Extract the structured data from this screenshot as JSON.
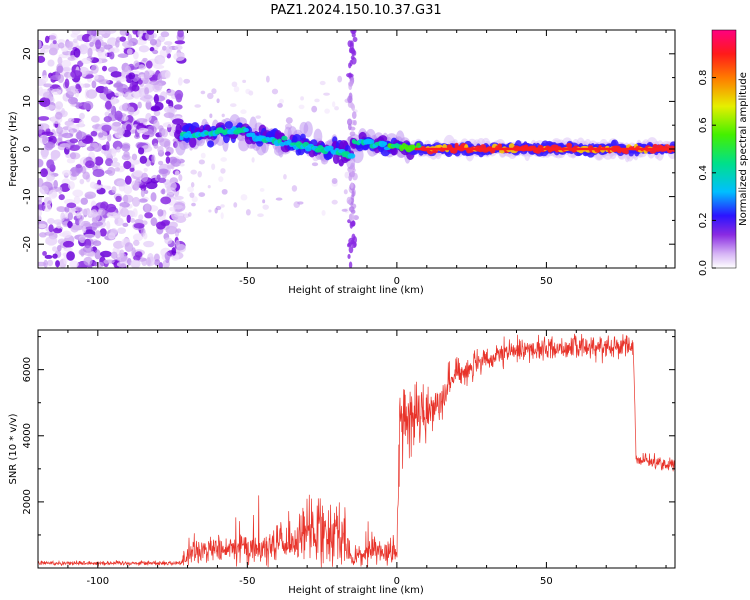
{
  "title": "PAZ1.2024.150.10.37.G31",
  "colors": {
    "line": "#e8332a",
    "axis": "#000000"
  },
  "chart_data": [
    {
      "type": "heatmap",
      "xlabel": "Height of straight line (km)",
      "ylabel": "Frequency (Hz)",
      "xlim": [
        -120,
        93
      ],
      "ylim": [
        -25,
        25
      ],
      "xticks": [
        -100,
        -50,
        0,
        50
      ],
      "yticks": [
        -20,
        -10,
        0,
        10,
        20
      ],
      "colorbar": {
        "label": "Normalized spectral amplitude",
        "range": [
          0,
          1
        ],
        "ticks": [
          "0.0",
          "0.2",
          "0.4",
          "0.6",
          "0.8"
        ],
        "tick_values": [
          0,
          0.2,
          0.4,
          0.6,
          0.8
        ],
        "colormap": "rainbow: white-violet-blue-cyan-green-yellow-red-magenta"
      },
      "grid": false
    },
    {
      "type": "line",
      "xlabel": "Height of straight line (km)",
      "ylabel": "SNR (10 * v/v)",
      "xlim": [
        -120,
        93
      ],
      "ylim": [
        0,
        7200
      ],
      "xticks": [
        -100,
        -50,
        0,
        50
      ],
      "yticks": [
        2000,
        4000,
        6000
      ],
      "series_envelope": [
        {
          "x": -120,
          "mean": 150,
          "noise": 60
        },
        {
          "x": -72,
          "mean": 150,
          "noise": 60
        },
        {
          "x": -70,
          "mean": 500,
          "noise": 350
        },
        {
          "x": -35,
          "mean": 700,
          "noise": 450
        },
        {
          "x": -28,
          "mean": 1200,
          "noise": 900
        },
        {
          "x": -18,
          "mean": 1100,
          "noise": 900
        },
        {
          "x": -15,
          "mean": 200,
          "noise": 120
        },
        {
          "x": -10,
          "mean": 500,
          "noise": 400
        },
        {
          "x": 0,
          "mean": 500,
          "noise": 350
        },
        {
          "x": 1,
          "mean": 4500,
          "noise": 900
        },
        {
          "x": 10,
          "mean": 4600,
          "noise": 700
        },
        {
          "x": 20,
          "mean": 5900,
          "noise": 400
        },
        {
          "x": 40,
          "mean": 6600,
          "noise": 300
        },
        {
          "x": 79,
          "mean": 6750,
          "noise": 300
        },
        {
          "x": 80,
          "mean": 3300,
          "noise": 150
        },
        {
          "x": 93,
          "mean": 3100,
          "noise": 200
        }
      ],
      "grid": false
    }
  ]
}
